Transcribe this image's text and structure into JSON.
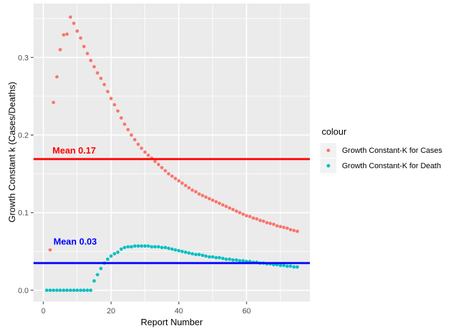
{
  "figure": {
    "background": "#FFFFFF",
    "panel_background": "#EBEBEB",
    "grid_color": "#FFFFFF",
    "tick_color": "#333333",
    "tick_label_color": "#4D4D4D"
  },
  "axes": {
    "x": {
      "title": "Report Number",
      "ticks": [
        0,
        20,
        40,
        60
      ],
      "tick_labels": [
        "0",
        "20",
        "40",
        "60"
      ],
      "minor_ticks": [
        10,
        30,
        50,
        70
      ]
    },
    "y": {
      "title": "Growth Constant k (Cases/Deaths)",
      "tick_values": [
        0.0,
        0.1,
        0.2,
        0.3
      ],
      "tick_labels": [
        "0.0",
        "0.1",
        "0.2",
        "0.3"
      ],
      "minor_ticks": [
        0.05,
        0.15,
        0.25,
        0.35
      ]
    }
  },
  "legend": {
    "title": "colour",
    "key_background": "#F2F2F2",
    "items": [
      {
        "label": "Growth Constant-K for Cases",
        "color": "#F8766D"
      },
      {
        "label": "Growth Constant-K for Death",
        "color": "#00BFC4"
      }
    ]
  },
  "chart_data": {
    "type": "scatter",
    "title": "",
    "xlabel": "Report Number",
    "ylabel": "Growth Constant k (Cases/Deaths)",
    "xlim": [
      -2.9,
      78.7
    ],
    "ylim": [
      -0.0145,
      0.3695
    ],
    "grid": true,
    "legend_position": "right",
    "series": [
      {
        "name": "Growth Constant-K for Cases",
        "color": "#F8766D",
        "points": [
          [
            2,
            0.052
          ],
          [
            3,
            0.242
          ],
          [
            4,
            0.275
          ],
          [
            5,
            0.31
          ],
          [
            6,
            0.329
          ],
          [
            7,
            0.33
          ],
          [
            8,
            0.352
          ],
          [
            9,
            0.344
          ],
          [
            10,
            0.334
          ],
          [
            11,
            0.325
          ],
          [
            12,
            0.314
          ],
          [
            13,
            0.305
          ],
          [
            14,
            0.296
          ],
          [
            15,
            0.288
          ],
          [
            16,
            0.28
          ],
          [
            17,
            0.273
          ],
          [
            18,
            0.265
          ],
          [
            19,
            0.256
          ],
          [
            20,
            0.247
          ],
          [
            21,
            0.239
          ],
          [
            22,
            0.231
          ],
          [
            23,
            0.222
          ],
          [
            24,
            0.214
          ],
          [
            25,
            0.207
          ],
          [
            26,
            0.2
          ],
          [
            27,
            0.194
          ],
          [
            28,
            0.188
          ],
          [
            29,
            0.183
          ],
          [
            30,
            0.178
          ],
          [
            31,
            0.174
          ],
          [
            32,
            0.17
          ],
          [
            33,
            0.166
          ],
          [
            34,
            0.162
          ],
          [
            35,
            0.158
          ],
          [
            36,
            0.154
          ],
          [
            37,
            0.15
          ],
          [
            38,
            0.147
          ],
          [
            39,
            0.144
          ],
          [
            40,
            0.141
          ],
          [
            41,
            0.138
          ],
          [
            42,
            0.135
          ],
          [
            43,
            0.132
          ],
          [
            44,
            0.129
          ],
          [
            45,
            0.127
          ],
          [
            46,
            0.124
          ],
          [
            47,
            0.122
          ],
          [
            48,
            0.12
          ],
          [
            49,
            0.118
          ],
          [
            50,
            0.116
          ],
          [
            51,
            0.114
          ],
          [
            52,
            0.112
          ],
          [
            53,
            0.11
          ],
          [
            54,
            0.108
          ],
          [
            55,
            0.106
          ],
          [
            56,
            0.104
          ],
          [
            57,
            0.102
          ],
          [
            58,
            0.1
          ],
          [
            59,
            0.098
          ],
          [
            60,
            0.096
          ],
          [
            61,
            0.095
          ],
          [
            62,
            0.093
          ],
          [
            63,
            0.092
          ],
          [
            64,
            0.09
          ],
          [
            65,
            0.089
          ],
          [
            66,
            0.087
          ],
          [
            67,
            0.086
          ],
          [
            68,
            0.085
          ],
          [
            69,
            0.083
          ],
          [
            70,
            0.082
          ],
          [
            71,
            0.081
          ],
          [
            72,
            0.08
          ],
          [
            73,
            0.078
          ],
          [
            74,
            0.077
          ],
          [
            75,
            0.076
          ]
        ]
      },
      {
        "name": "Growth Constant-K for Death",
        "color": "#00BFC4",
        "points": [
          [
            1,
            0.0
          ],
          [
            2,
            0.0
          ],
          [
            3,
            0.0
          ],
          [
            4,
            0.0
          ],
          [
            5,
            0.0
          ],
          [
            6,
            0.0
          ],
          [
            7,
            0.0
          ],
          [
            8,
            0.0
          ],
          [
            9,
            0.0
          ],
          [
            10,
            0.0
          ],
          [
            11,
            0.0
          ],
          [
            12,
            0.0
          ],
          [
            13,
            0.0
          ],
          [
            14,
            0.0
          ],
          [
            15,
            0.012
          ],
          [
            16,
            0.02
          ],
          [
            17,
            0.028
          ],
          [
            18,
            0.035
          ],
          [
            19,
            0.04
          ],
          [
            20,
            0.044
          ],
          [
            21,
            0.047
          ],
          [
            22,
            0.049
          ],
          [
            23,
            0.053
          ],
          [
            24,
            0.055
          ],
          [
            25,
            0.056
          ],
          [
            26,
            0.056
          ],
          [
            27,
            0.057
          ],
          [
            28,
            0.057
          ],
          [
            29,
            0.057
          ],
          [
            30,
            0.057
          ],
          [
            31,
            0.057
          ],
          [
            32,
            0.056
          ],
          [
            33,
            0.056
          ],
          [
            34,
            0.056
          ],
          [
            35,
            0.055
          ],
          [
            36,
            0.055
          ],
          [
            37,
            0.054
          ],
          [
            38,
            0.053
          ],
          [
            39,
            0.052
          ],
          [
            40,
            0.051
          ],
          [
            41,
            0.05
          ],
          [
            42,
            0.049
          ],
          [
            43,
            0.048
          ],
          [
            44,
            0.047
          ],
          [
            45,
            0.046
          ],
          [
            46,
            0.046
          ],
          [
            47,
            0.045
          ],
          [
            48,
            0.044
          ],
          [
            49,
            0.043
          ],
          [
            50,
            0.043
          ],
          [
            51,
            0.042
          ],
          [
            52,
            0.042
          ],
          [
            53,
            0.041
          ],
          [
            54,
            0.04
          ],
          [
            55,
            0.04
          ],
          [
            56,
            0.039
          ],
          [
            57,
            0.039
          ],
          [
            58,
            0.038
          ],
          [
            59,
            0.038
          ],
          [
            60,
            0.037
          ],
          [
            61,
            0.037
          ],
          [
            62,
            0.036
          ],
          [
            63,
            0.036
          ],
          [
            64,
            0.035
          ],
          [
            65,
            0.035
          ],
          [
            66,
            0.034
          ],
          [
            67,
            0.034
          ],
          [
            68,
            0.033
          ],
          [
            69,
            0.033
          ],
          [
            70,
            0.032
          ],
          [
            71,
            0.032
          ],
          [
            72,
            0.031
          ],
          [
            73,
            0.031
          ],
          [
            74,
            0.03
          ],
          [
            75,
            0.03
          ]
        ]
      }
    ],
    "mean_lines": [
      {
        "label": "Mean 0.17",
        "value": 0.169,
        "color": "#FF0000",
        "label_x": 2.7,
        "label_y": 0.176
      },
      {
        "label": "Mean 0.03",
        "value": 0.035,
        "color": "#0000FF",
        "label_x": 3.0,
        "label_y": 0.059
      }
    ]
  }
}
